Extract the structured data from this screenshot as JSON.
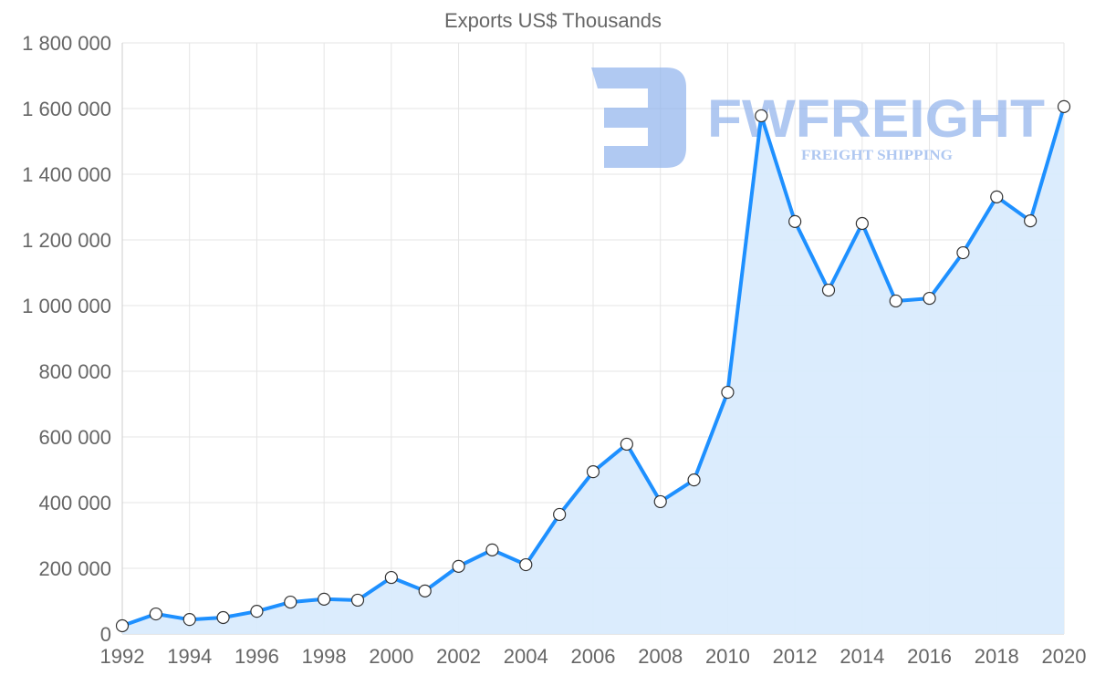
{
  "chart_data": {
    "type": "line",
    "fill": "area",
    "title": "Exports US$ Thousands",
    "xlabel": "",
    "ylabel": "",
    "x": [
      1992,
      1993,
      1994,
      1995,
      1996,
      1997,
      1998,
      1999,
      2000,
      2001,
      2002,
      2003,
      2004,
      2005,
      2006,
      2007,
      2008,
      2009,
      2010,
      2011,
      2012,
      2013,
      2014,
      2015,
      2016,
      2017,
      2018,
      2019,
      2020
    ],
    "series": [
      {
        "name": "Exports US$ Thousands",
        "values": [
          25000,
          61000,
          44000,
          50000,
          69000,
          97000,
          106000,
          103000,
          172000,
          131000,
          206000,
          256000,
          211000,
          364000,
          494000,
          578000,
          403000,
          469000,
          736000,
          1578000,
          1256000,
          1047000,
          1250000,
          1014000,
          1022000,
          1161000,
          1331000,
          1258000,
          1606000
        ]
      }
    ],
    "xlim": [
      1992,
      2020
    ],
    "ylim": [
      0,
      1800000
    ],
    "x_ticks": [
      "1992",
      "1994",
      "1996",
      "1998",
      "2000",
      "2002",
      "2004",
      "2006",
      "2008",
      "2010",
      "2012",
      "2014",
      "2016",
      "2018",
      "2020"
    ],
    "y_ticks": [
      "0",
      "200 000",
      "400 000",
      "600 000",
      "800 000",
      "1 000 000",
      "1 200 000",
      "1 400 000",
      "1 600 000",
      "1 800 000"
    ],
    "grid": true,
    "legend": "none",
    "colors": {
      "line": "#1e90ff",
      "fill": "#d9ebfd",
      "grid": "#e5e5e5",
      "watermark": "#8fb2ec"
    }
  },
  "watermark": {
    "brand": "FWFREIGHT",
    "tagline": "FREIGHT SHIPPING"
  }
}
